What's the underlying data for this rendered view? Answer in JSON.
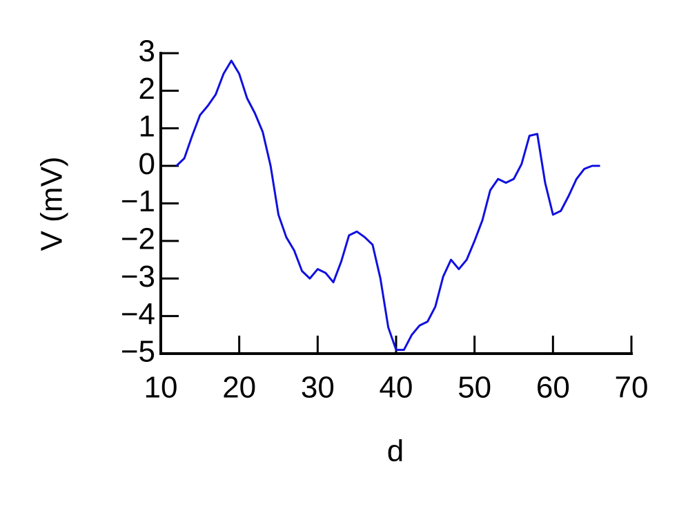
{
  "chart_data": {
    "type": "line",
    "x_label": "d",
    "y_label": "V (mV)",
    "x": [
      12,
      13,
      14,
      15,
      16,
      17,
      18,
      19,
      20,
      21,
      22,
      23,
      24,
      25,
      26,
      27,
      28,
      29,
      30,
      31,
      32,
      33,
      34,
      35,
      36,
      37,
      38,
      39,
      40,
      41,
      42,
      43,
      44,
      45,
      46,
      47,
      48,
      49,
      50,
      51,
      52,
      53,
      54,
      55,
      56,
      57,
      58,
      59,
      60,
      61,
      62,
      63,
      64,
      65,
      66
    ],
    "series": [
      {
        "name": "V",
        "color": "#1010e0",
        "values": [
          0,
          0.2,
          0.8,
          1.35,
          1.6,
          1.9,
          2.45,
          2.8,
          2.45,
          1.8,
          1.4,
          0.9,
          0,
          -1.3,
          -1.9,
          -2.25,
          -2.8,
          -3.0,
          -2.75,
          -2.85,
          -3.1,
          -2.55,
          -1.85,
          -1.75,
          -1.9,
          -2.1,
          -3.0,
          -4.3,
          -4.9,
          -4.9,
          -4.5,
          -4.25,
          -4.15,
          -3.75,
          -2.95,
          -2.5,
          -2.75,
          -2.5,
          -2.0,
          -1.45,
          -0.65,
          -0.35,
          -0.45,
          -0.35,
          0.05,
          0.8,
          0.85,
          -0.45,
          -1.3,
          -1.2,
          -0.8,
          -0.35,
          -0.08,
          0,
          0
        ]
      }
    ],
    "xlim": [
      10,
      70
    ],
    "xticks": [
      10,
      20,
      30,
      40,
      50,
      60,
      70
    ],
    "ylim": [
      -5,
      3
    ],
    "yticks": [
      {
        "value": -5,
        "label": "−5"
      },
      {
        "value": -4,
        "label": "−4"
      },
      {
        "value": -3,
        "label": "−3"
      },
      {
        "value": -2,
        "label": "−2"
      },
      {
        "value": -1,
        "label": "−1"
      },
      0,
      1,
      2,
      3
    ]
  }
}
